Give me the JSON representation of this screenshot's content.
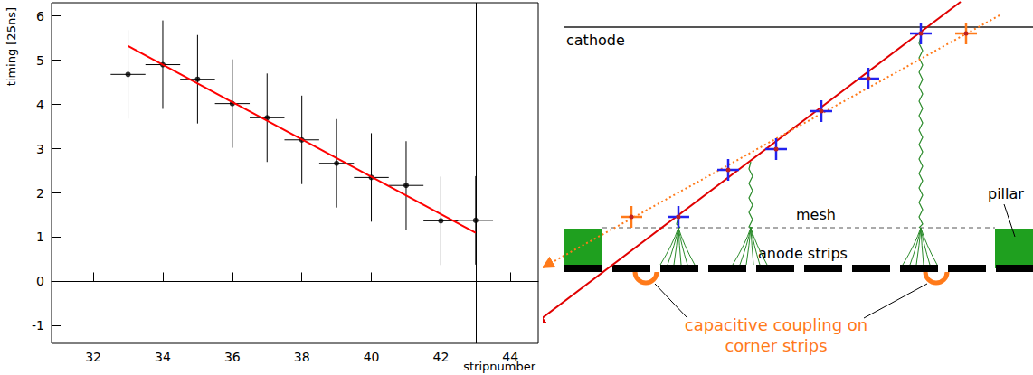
{
  "chart_data": {
    "type": "scatter",
    "x_label": "stripnumber",
    "y_label": "timing [25ns]",
    "x": [
      33,
      34,
      35,
      36,
      37,
      38,
      39,
      40,
      41,
      42,
      43
    ],
    "values": [
      4.68,
      4.9,
      4.57,
      4.02,
      3.7,
      3.2,
      2.67,
      2.35,
      2.17,
      1.37,
      1.38
    ],
    "x_err": [
      0.5,
      0.5,
      0.5,
      0.5,
      0.5,
      0.5,
      0.5,
      0.5,
      0.5,
      0.5,
      0.5
    ],
    "y_err": [
      1,
      1,
      1,
      1,
      1,
      1,
      1,
      1,
      1,
      1,
      1
    ],
    "color": "#000000",
    "marker": "circle",
    "fit": {
      "x": [
        33,
        43
      ],
      "values": [
        5.32,
        1.1
      ],
      "color": "#ff0000"
    },
    "fit_range": [
      33,
      43
    ],
    "xlim": [
      30.8,
      44.8
    ],
    "xticks": [
      32,
      34,
      36,
      38,
      40,
      42,
      44
    ],
    "ylim": [
      -1.4,
      6.3
    ],
    "yticks": [
      -1,
      0,
      1,
      2,
      3,
      4,
      5,
      6
    ],
    "grid": false
  },
  "diagram": {
    "cathode": "cathode",
    "mesh": "mesh",
    "anode": "anode strips",
    "pillar": "pillar",
    "annotation": [
      "capacitive coupling on",
      "corner strips"
    ]
  }
}
